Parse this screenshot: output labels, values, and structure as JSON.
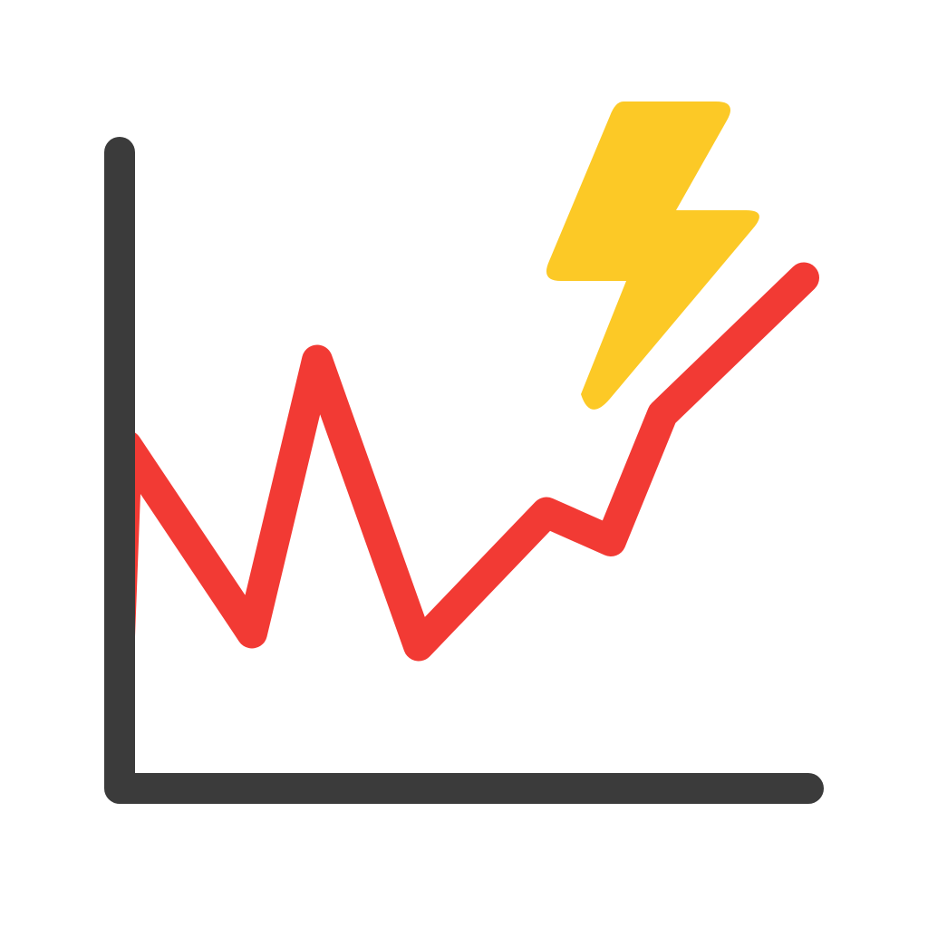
{
  "icon": {
    "name": "volatile-growth-chart-icon",
    "colors": {
      "background": "#ffffff",
      "axes": "#3b3b3b",
      "trend_line": "#f23a34",
      "lightning": "#fcc926"
    },
    "trend_values": [
      25,
      73,
      14,
      100,
      10,
      52,
      43,
      83,
      126
    ],
    "value_range": [
      -35,
      165
    ]
  }
}
